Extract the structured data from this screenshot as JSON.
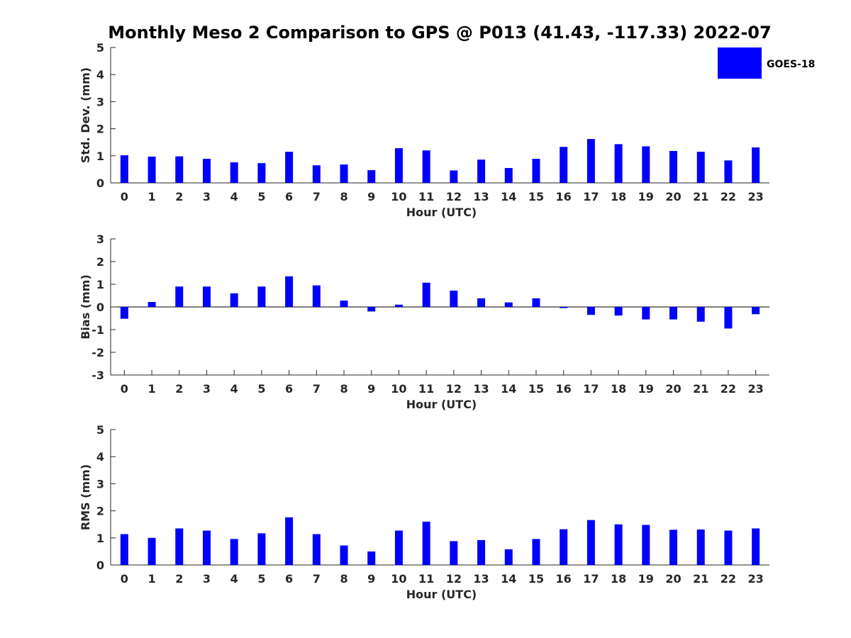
{
  "title": "Monthly Meso 2 Comparison to GPS @ P013 (41.43, -117.33) 2022-07",
  "legend": {
    "label": "GOES-18",
    "color": "#0000ff"
  },
  "chart_data": [
    {
      "type": "bar",
      "ylabel": "Std. Dev. (mm)",
      "xlabel": "Hour (UTC)",
      "ylim": [
        0,
        5
      ],
      "yticks": [
        "0",
        "1",
        "2",
        "3",
        "4",
        "5"
      ],
      "categories": [
        "0",
        "1",
        "2",
        "3",
        "4",
        "5",
        "6",
        "7",
        "8",
        "9",
        "10",
        "11",
        "12",
        "13",
        "14",
        "15",
        "16",
        "17",
        "18",
        "19",
        "20",
        "21",
        "22",
        "23"
      ],
      "series": [
        {
          "name": "GOES-18",
          "color": "#0000ff",
          "values": [
            1.02,
            0.97,
            0.98,
            0.89,
            0.76,
            0.73,
            1.15,
            0.65,
            0.68,
            0.47,
            1.28,
            1.2,
            0.46,
            0.86,
            0.55,
            0.89,
            1.33,
            1.62,
            1.43,
            1.35,
            1.18,
            1.15,
            0.83,
            1.31
          ]
        }
      ]
    },
    {
      "type": "bar",
      "ylabel": "Bias (mm)",
      "xlabel": "Hour (UTC)",
      "ylim": [
        -3,
        3
      ],
      "yticks": [
        "-3",
        "-2",
        "-1",
        "0",
        "1",
        "2",
        "3"
      ],
      "categories": [
        "0",
        "1",
        "2",
        "3",
        "4",
        "5",
        "6",
        "7",
        "8",
        "9",
        "10",
        "11",
        "12",
        "13",
        "14",
        "15",
        "16",
        "17",
        "18",
        "19",
        "20",
        "21",
        "22",
        "23"
      ],
      "series": [
        {
          "name": "GOES-18",
          "color": "#0000ff",
          "values": [
            -0.52,
            0.22,
            0.9,
            0.9,
            0.6,
            0.9,
            1.35,
            0.95,
            0.28,
            -0.2,
            0.1,
            1.07,
            0.72,
            0.38,
            0.2,
            0.38,
            -0.05,
            -0.35,
            -0.38,
            -0.55,
            -0.55,
            -0.65,
            -0.95,
            -0.32
          ]
        }
      ]
    },
    {
      "type": "bar",
      "ylabel": "RMS (mm)",
      "xlabel": "Hour (UTC)",
      "ylim": [
        0,
        5
      ],
      "yticks": [
        "0",
        "1",
        "2",
        "3",
        "4",
        "5"
      ],
      "categories": [
        "0",
        "1",
        "2",
        "3",
        "4",
        "5",
        "6",
        "7",
        "8",
        "9",
        "10",
        "11",
        "12",
        "13",
        "14",
        "15",
        "16",
        "17",
        "18",
        "19",
        "20",
        "21",
        "22",
        "23"
      ],
      "series": [
        {
          "name": "GOES-18",
          "color": "#0000ff",
          "values": [
            1.14,
            1.0,
            1.35,
            1.27,
            0.96,
            1.17,
            1.76,
            1.14,
            0.72,
            0.5,
            1.27,
            1.6,
            0.88,
            0.92,
            0.58,
            0.96,
            1.32,
            1.66,
            1.5,
            1.48,
            1.3,
            1.31,
            1.27,
            1.35
          ]
        }
      ]
    }
  ]
}
